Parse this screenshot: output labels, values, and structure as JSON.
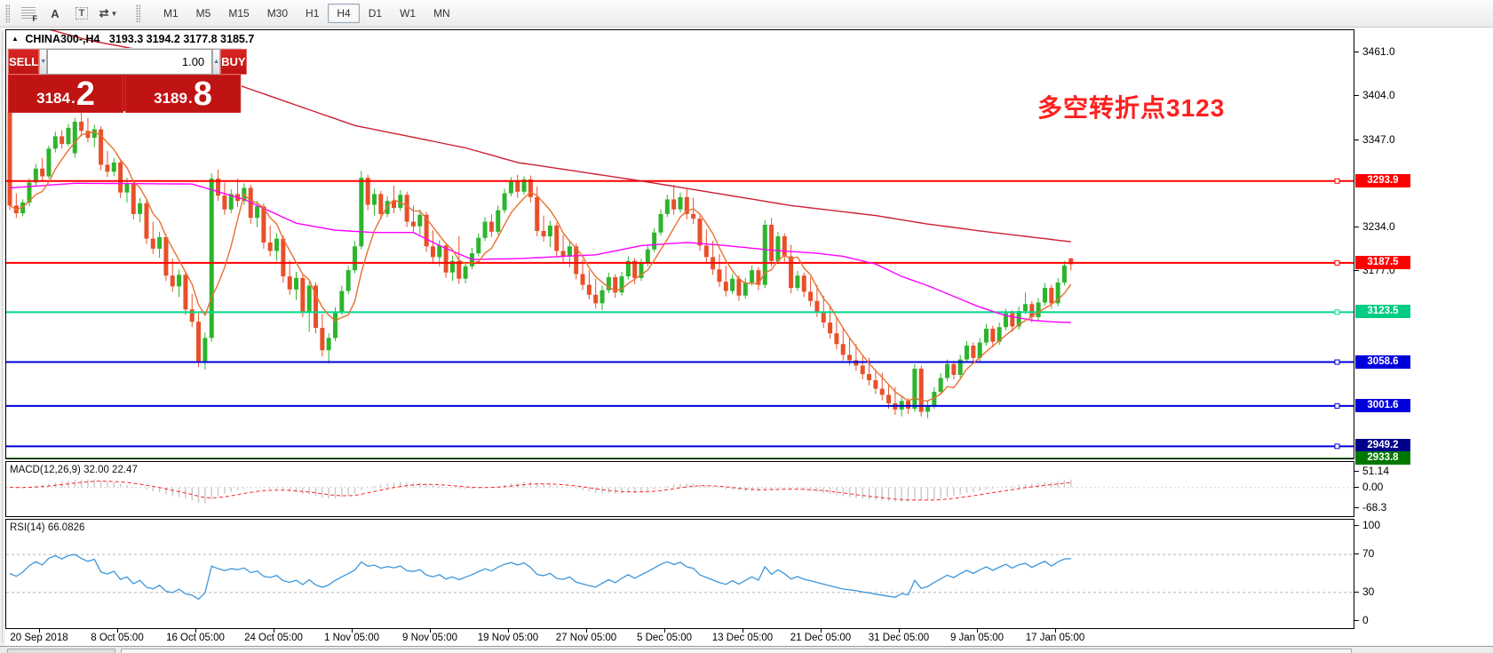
{
  "toolbar": {
    "icon_f": "F",
    "icon_a": "A",
    "icon_t": "T",
    "icon_arrows": "⇄",
    "icon_caret": "▼",
    "timeframes": [
      "M1",
      "M5",
      "M15",
      "M30",
      "H1",
      "H4",
      "D1",
      "W1",
      "MN"
    ],
    "active_timeframe": "H4"
  },
  "title": {
    "collapse_glyph": "▲",
    "symbol": "CHINA300-,H4",
    "ohlc": "3193.3 3194.2 3177.8 3185.7"
  },
  "annotation": {
    "text": "多空转折点3123",
    "color": "#ff1f1f"
  },
  "trade_panel": {
    "sell_label": "SELL",
    "buy_label": "BUY",
    "volume": "1.00",
    "spin_down": "▼",
    "spin_up": "▲",
    "sell_price": {
      "int": "3184",
      "dot": ".",
      "big": "2"
    },
    "buy_price": {
      "int": "3189",
      "dot": ".",
      "big": "8"
    }
  },
  "macd_pane": {
    "label": "MACD(12,26,9) 32.00 22.47",
    "scale": [
      {
        "v": 51.14,
        "label": "51.14"
      },
      {
        "v": 0,
        "label": "0.00"
      },
      {
        "v": -68.3,
        "label": "-68.3"
      }
    ]
  },
  "rsi_pane": {
    "label": "RSI(14) 66.0826",
    "scale": [
      {
        "v": 100,
        "label": "100"
      },
      {
        "v": 70,
        "label": "70"
      },
      {
        "v": 30,
        "label": "30"
      },
      {
        "v": 0,
        "label": "0"
      }
    ]
  },
  "chart_data": {
    "type": "candlestick",
    "symbol": "CHINA300-",
    "timeframe": "H4",
    "last_quote": {
      "bid": 3184.2,
      "ask": 3189.8,
      "open": 3193.3,
      "high": 3194.2,
      "low": 3177.8,
      "close": 3185.7
    },
    "price_axis": {
      "min": 2932,
      "max": 3490,
      "ticks": [
        "3461.0",
        "3404.0",
        "3347.0",
        "3234.0",
        "3177.0"
      ],
      "tick_values": [
        3461.0,
        3404.0,
        3347.0,
        3234.0,
        3177.0
      ]
    },
    "time_labels": [
      "20 Sep 2018",
      "8 Oct 05:00",
      "16 Oct 05:00",
      "24 Oct 05:00",
      "1 Nov 05:00",
      "9 Nov 05:00",
      "19 Nov 05:00",
      "27 Nov 05:00",
      "5 Dec 05:00",
      "13 Dec 05:00",
      "21 Dec 05:00",
      "31 Dec 05:00",
      "9 Jan 05:00",
      "17 Jan 05:00"
    ],
    "hlines": [
      {
        "price": 3293.9,
        "color": "#ff0000",
        "width": 2,
        "label_bg": "#ff0000"
      },
      {
        "price": 3187.5,
        "color": "#ff0000",
        "width": 2,
        "label_bg": "#ff0000"
      },
      {
        "price": 3123.5,
        "color": "#00d88a",
        "width": 2,
        "label_bg": "#00cc82"
      },
      {
        "price": 3058.6,
        "color": "#0000dd",
        "width": 2,
        "label_bg": "#0000dd"
      },
      {
        "price": 3001.6,
        "color": "#0000dd",
        "width": 2,
        "label_bg": "#0000dd"
      },
      {
        "price": 2949.2,
        "color": "#0000dd",
        "width": 2,
        "label_bg": "#00008b"
      },
      {
        "price": 2933.8,
        "color": "#007800",
        "width": 1,
        "label_bg": "#007800"
      }
    ],
    "colors": {
      "up": "#2cb52c",
      "down": "#e8502a",
      "ma_slow": "#cc2033",
      "ma_mid": "#ff00ff",
      "ma_fast": "#e87030",
      "macd_hist": "#c8c8c8",
      "macd_signal": "#ff2222",
      "rsi_line": "#3c96dc",
      "rsi_level": "#b4b4b4"
    },
    "ma_slow_waypoints": [
      [
        0,
        3505
      ],
      [
        12,
        3477
      ],
      [
        22,
        3461
      ],
      [
        36,
        3416
      ],
      [
        53,
        3366
      ],
      [
        70,
        3337
      ],
      [
        78,
        3318
      ],
      [
        97,
        3294
      ],
      [
        120,
        3262
      ],
      [
        133,
        3249
      ],
      [
        141,
        3238
      ],
      [
        150,
        3228
      ],
      [
        157,
        3221
      ],
      [
        163,
        3215
      ]
    ],
    "ma_mid_waypoints": [
      [
        0,
        3285
      ],
      [
        10,
        3291
      ],
      [
        28,
        3290
      ],
      [
        36,
        3270
      ],
      [
        44,
        3239
      ],
      [
        50,
        3230
      ],
      [
        56,
        3227
      ],
      [
        62,
        3227
      ],
      [
        66,
        3210
      ],
      [
        71,
        3192
      ],
      [
        78,
        3193
      ],
      [
        85,
        3196
      ],
      [
        90,
        3198
      ],
      [
        97,
        3210
      ],
      [
        104,
        3214
      ],
      [
        110,
        3210
      ],
      [
        117,
        3204
      ],
      [
        124,
        3200
      ],
      [
        128,
        3196
      ],
      [
        133,
        3186
      ],
      [
        137,
        3170
      ],
      [
        141,
        3158
      ],
      [
        145,
        3144
      ],
      [
        149,
        3130
      ],
      [
        153,
        3119
      ],
      [
        157,
        3113
      ],
      [
        160,
        3111
      ],
      [
        163,
        3110
      ]
    ],
    "ma_fast_window": 6,
    "macd": {
      "params": [
        12,
        26,
        9
      ],
      "current": [
        32.0,
        22.47
      ],
      "range": [
        -68.3,
        51.14
      ]
    },
    "rsi": {
      "period": 14,
      "current": 66.0826,
      "levels": [
        70,
        30
      ],
      "range": [
        0,
        100
      ]
    },
    "candles": [
      [
        3385,
        3391,
        3256,
        3262
      ],
      [
        3262,
        3278,
        3246,
        3252
      ],
      [
        3252,
        3270,
        3248,
        3266
      ],
      [
        3266,
        3297,
        3261,
        3292
      ],
      [
        3292,
        3316,
        3287,
        3310
      ],
      [
        3310,
        3324,
        3294,
        3300
      ],
      [
        3300,
        3340,
        3297,
        3336
      ],
      [
        3336,
        3358,
        3331,
        3352
      ],
      [
        3352,
        3360,
        3336,
        3342
      ],
      [
        3342,
        3368,
        3339,
        3363
      ],
      [
        3330,
        3376,
        3324,
        3371
      ],
      [
        3371,
        3383,
        3352,
        3359
      ],
      [
        3359,
        3376,
        3344,
        3350
      ],
      [
        3350,
        3367,
        3338,
        3361
      ],
      [
        3361,
        3365,
        3308,
        3315
      ],
      [
        3315,
        3333,
        3299,
        3306
      ],
      [
        3306,
        3324,
        3300,
        3318
      ],
      [
        3318,
        3322,
        3272,
        3279
      ],
      [
        3279,
        3298,
        3266,
        3290
      ],
      [
        3290,
        3294,
        3244,
        3251
      ],
      [
        3251,
        3272,
        3240,
        3265
      ],
      [
        3265,
        3269,
        3212,
        3219
      ],
      [
        3219,
        3241,
        3199,
        3206
      ],
      [
        3206,
        3228,
        3194,
        3221
      ],
      [
        3221,
        3225,
        3164,
        3171
      ],
      [
        3171,
        3193,
        3150,
        3157
      ],
      [
        3157,
        3179,
        3143,
        3172
      ],
      [
        3172,
        3176,
        3120,
        3127
      ],
      [
        3127,
        3147,
        3104,
        3111
      ],
      [
        3111,
        3122,
        3052,
        3060
      ],
      [
        3060,
        3097,
        3049,
        3090
      ],
      [
        3090,
        3304,
        3085,
        3297
      ],
      [
        3297,
        3309,
        3268,
        3275
      ],
      [
        3275,
        3292,
        3250,
        3257
      ],
      [
        3257,
        3283,
        3252,
        3277
      ],
      [
        3277,
        3297,
        3260,
        3268
      ],
      [
        3268,
        3291,
        3263,
        3285
      ],
      [
        3285,
        3289,
        3238,
        3246
      ],
      [
        3246,
        3268,
        3234,
        3261
      ],
      [
        3261,
        3265,
        3206,
        3214
      ],
      [
        3214,
        3236,
        3196,
        3203
      ],
      [
        3203,
        3226,
        3190,
        3219
      ],
      [
        3219,
        3223,
        3162,
        3170
      ],
      [
        3170,
        3191,
        3146,
        3153
      ],
      [
        3153,
        3176,
        3139,
        3168
      ],
      [
        3168,
        3172,
        3117,
        3124
      ],
      [
        3124,
        3163,
        3098,
        3158
      ],
      [
        3158,
        3162,
        3096,
        3103
      ],
      [
        3103,
        3121,
        3066,
        3074
      ],
      [
        3074,
        3096,
        3057,
        3090
      ],
      [
        3090,
        3130,
        3086,
        3124
      ],
      [
        3124,
        3158,
        3120,
        3151
      ],
      [
        3151,
        3184,
        3147,
        3178
      ],
      [
        3178,
        3216,
        3174,
        3209
      ],
      [
        3209,
        3307,
        3205,
        3298
      ],
      [
        3298,
        3302,
        3256,
        3263
      ],
      [
        3263,
        3284,
        3249,
        3277
      ],
      [
        3277,
        3281,
        3244,
        3251
      ],
      [
        3251,
        3274,
        3247,
        3268
      ],
      [
        3268,
        3288,
        3252,
        3259
      ],
      [
        3259,
        3282,
        3255,
        3276
      ],
      [
        3276,
        3280,
        3234,
        3241
      ],
      [
        3241,
        3262,
        3228,
        3235
      ],
      [
        3235,
        3257,
        3224,
        3250
      ],
      [
        3250,
        3254,
        3202,
        3209
      ],
      [
        3209,
        3230,
        3188,
        3195
      ],
      [
        3195,
        3217,
        3183,
        3210
      ],
      [
        3210,
        3214,
        3168,
        3175
      ],
      [
        3175,
        3197,
        3164,
        3190
      ],
      [
        3190,
        3222,
        3160,
        3167
      ],
      [
        3167,
        3189,
        3161,
        3183
      ],
      [
        3183,
        3207,
        3179,
        3200
      ],
      [
        3200,
        3226,
        3196,
        3220
      ],
      [
        3220,
        3247,
        3216,
        3241
      ],
      [
        3241,
        3251,
        3221,
        3228
      ],
      [
        3228,
        3262,
        3224,
        3256
      ],
      [
        3256,
        3284,
        3252,
        3278
      ],
      [
        3278,
        3299,
        3274,
        3293
      ],
      [
        3293,
        3302,
        3272,
        3280
      ],
      [
        3280,
        3300,
        3276,
        3296
      ],
      [
        3296,
        3301,
        3266,
        3273
      ],
      [
        3273,
        3287,
        3222,
        3229
      ],
      [
        3229,
        3249,
        3215,
        3222
      ],
      [
        3222,
        3242,
        3208,
        3236
      ],
      [
        3236,
        3240,
        3196,
        3203
      ],
      [
        3203,
        3224,
        3189,
        3196
      ],
      [
        3196,
        3215,
        3182,
        3209
      ],
      [
        3209,
        3213,
        3166,
        3173
      ],
      [
        3173,
        3192,
        3152,
        3159
      ],
      [
        3159,
        3178,
        3140,
        3146
      ],
      [
        3146,
        3167,
        3128,
        3135
      ],
      [
        3135,
        3158,
        3126,
        3152
      ],
      [
        3152,
        3175,
        3148,
        3169
      ],
      [
        3169,
        3173,
        3142,
        3149
      ],
      [
        3149,
        3176,
        3145,
        3170
      ],
      [
        3170,
        3196,
        3166,
        3190
      ],
      [
        3190,
        3194,
        3160,
        3168
      ],
      [
        3168,
        3193,
        3164,
        3187
      ],
      [
        3187,
        3211,
        3183,
        3205
      ],
      [
        3205,
        3233,
        3201,
        3227
      ],
      [
        3227,
        3257,
        3223,
        3251
      ],
      [
        3251,
        3276,
        3247,
        3270
      ],
      [
        3270,
        3289,
        3250,
        3257
      ],
      [
        3257,
        3279,
        3253,
        3273
      ],
      [
        3273,
        3284,
        3244,
        3251
      ],
      [
        3251,
        3272,
        3238,
        3245
      ],
      [
        3245,
        3249,
        3203,
        3210
      ],
      [
        3210,
        3231,
        3188,
        3195
      ],
      [
        3195,
        3216,
        3172,
        3179
      ],
      [
        3179,
        3199,
        3156,
        3163
      ],
      [
        3163,
        3184,
        3144,
        3151
      ],
      [
        3151,
        3173,
        3147,
        3167
      ],
      [
        3167,
        3171,
        3138,
        3145
      ],
      [
        3145,
        3168,
        3141,
        3162
      ],
      [
        3162,
        3184,
        3158,
        3178
      ],
      [
        3178,
        3182,
        3152,
        3159
      ],
      [
        3159,
        3243,
        3155,
        3237
      ],
      [
        3237,
        3246,
        3183,
        3190
      ],
      [
        3190,
        3228,
        3186,
        3222
      ],
      [
        3222,
        3226,
        3189,
        3196
      ],
      [
        3196,
        3211,
        3148,
        3155
      ],
      [
        3155,
        3177,
        3151,
        3171
      ],
      [
        3171,
        3175,
        3143,
        3150
      ],
      [
        3150,
        3169,
        3131,
        3138
      ],
      [
        3138,
        3159,
        3117,
        3124
      ],
      [
        3124,
        3145,
        3103,
        3110
      ],
      [
        3110,
        3131,
        3089,
        3096
      ],
      [
        3096,
        3117,
        3075,
        3082
      ],
      [
        3082,
        3103,
        3061,
        3068
      ],
      [
        3068,
        3089,
        3054,
        3061
      ],
      [
        3061,
        3082,
        3047,
        3054
      ],
      [
        3054,
        3068,
        3036,
        3043
      ],
      [
        3043,
        3064,
        3028,
        3035
      ],
      [
        3035,
        3049,
        3017,
        3024
      ],
      [
        3024,
        3045,
        3009,
        3016
      ],
      [
        3016,
        3030,
        2998,
        3005
      ],
      [
        3005,
        3026,
        2990,
        2997
      ],
      [
        2997,
        3014,
        2988,
        3008
      ],
      [
        3008,
        3012,
        2991,
        2998
      ],
      [
        2998,
        3056,
        2994,
        3050
      ],
      [
        3050,
        3054,
        2988,
        2994
      ],
      [
        2994,
        3008,
        2986,
        3002
      ],
      [
        3002,
        3026,
        2998,
        3020
      ],
      [
        3020,
        3044,
        3016,
        3038
      ],
      [
        3038,
        3062,
        3034,
        3056
      ],
      [
        3056,
        3060,
        3036,
        3042
      ],
      [
        3042,
        3068,
        3038,
        3062
      ],
      [
        3062,
        3086,
        3058,
        3080
      ],
      [
        3080,
        3084,
        3058,
        3064
      ],
      [
        3064,
        3090,
        3060,
        3084
      ],
      [
        3084,
        3108,
        3080,
        3102
      ],
      [
        3102,
        3106,
        3078,
        3085
      ],
      [
        3085,
        3110,
        3081,
        3104
      ],
      [
        3104,
        3128,
        3100,
        3122
      ],
      [
        3122,
        3126,
        3098,
        3105
      ],
      [
        3105,
        3131,
        3101,
        3125
      ],
      [
        3125,
        3149,
        3121,
        3134
      ],
      [
        3134,
        3138,
        3110,
        3117
      ],
      [
        3117,
        3142,
        3113,
        3136
      ],
      [
        3136,
        3161,
        3132,
        3155
      ],
      [
        3155,
        3159,
        3128,
        3135
      ],
      [
        3135,
        3168,
        3131,
        3162
      ],
      [
        3162,
        3190,
        3158,
        3184
      ],
      [
        3193.3,
        3194.2,
        3177.8,
        3185.7
      ]
    ]
  }
}
